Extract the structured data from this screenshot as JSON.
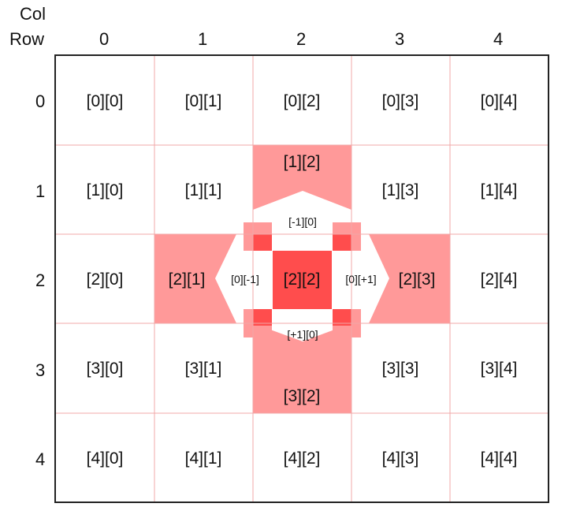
{
  "headers": {
    "col_title": "Col",
    "row_title": "Row",
    "col_labels": [
      "0",
      "1",
      "2",
      "3",
      "4"
    ],
    "row_labels": [
      "0",
      "1",
      "2",
      "3",
      "4"
    ]
  },
  "cells": [
    [
      "[0][0]",
      "[0][1]",
      "[0][2]",
      "[0][3]",
      "[0][4]"
    ],
    [
      "[1][0]",
      "[1][1]",
      "[1][2]",
      "[1][3]",
      "[1][4]"
    ],
    [
      "[2][0]",
      "[2][1]",
      "[2][2]",
      "[2][3]",
      "[2][4]"
    ],
    [
      "[3][0]",
      "[3][1]",
      "[3][2]",
      "[3][3]",
      "[3][4]"
    ],
    [
      "[4][0]",
      "[4][1]",
      "[4][2]",
      "[4][3]",
      "[4][4]"
    ]
  ],
  "offsets": {
    "up": "[-1][0]",
    "down": "[+1][0]",
    "left": "[0][-1]",
    "right": "[0][+1]"
  },
  "colors": {
    "grid_line": "#f0a8a8",
    "border": "#222222",
    "neighbor_fill": "#ff9999",
    "center_fill": "#ff4d4d",
    "corner_fill": "#ff9999",
    "corner_dark": "#ff4d4d"
  }
}
